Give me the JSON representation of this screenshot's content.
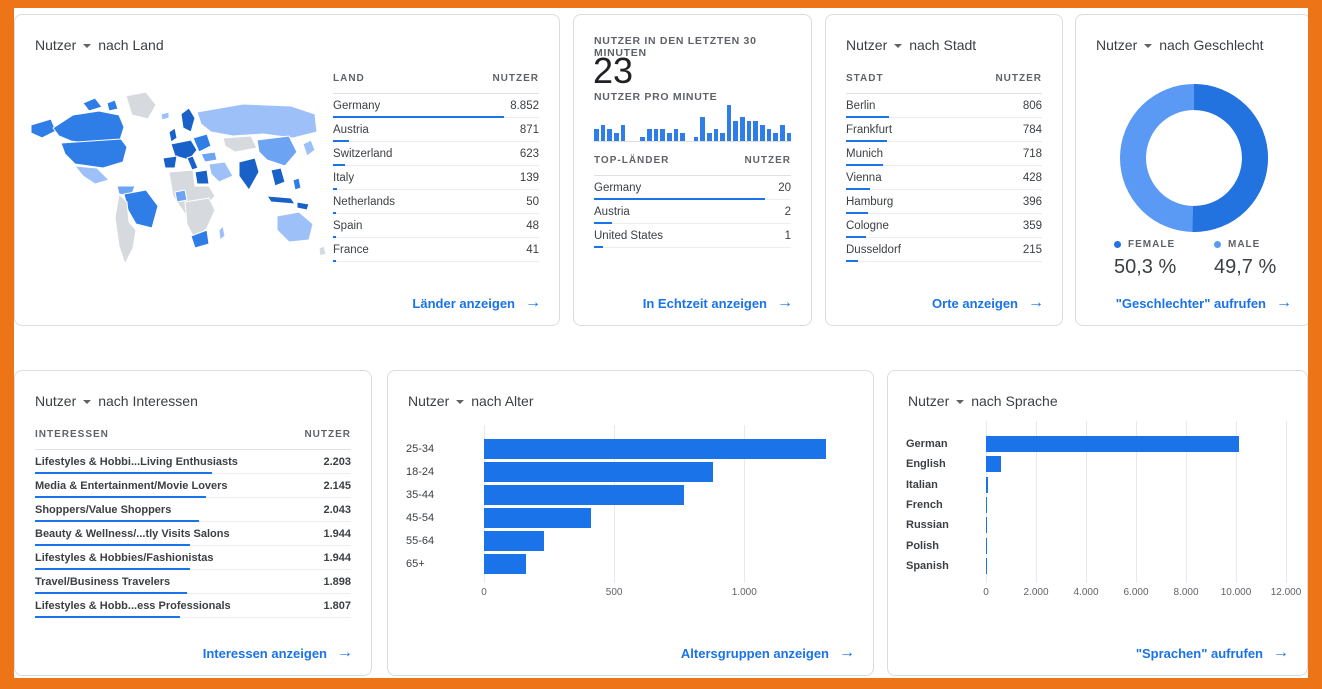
{
  "colors": {
    "frame": "#ee7418",
    "link_blue": "#1a73e8",
    "bar_blue": "#1a73e8",
    "mini_bar_blue": "#2e7de9",
    "donut_female": "#2272df",
    "donut_male": "#5a9af5",
    "map_dark": "#1861c9",
    "map_strong": "#2f7de7",
    "map_medium": "#6da3f3",
    "map_light": "#9dc0f8",
    "map_gray": "#d6d9dd"
  },
  "cards": {
    "land": {
      "title_metric": "Nutzer",
      "title_rest": "nach Land",
      "col_label": "LAND",
      "col_value": "NUTZER",
      "rows": [
        {
          "label": "Germany",
          "value": "8.852",
          "bar_pct": 83
        },
        {
          "label": "Austria",
          "value": "871",
          "bar_pct": 8
        },
        {
          "label": "Switzerland",
          "value": "623",
          "bar_pct": 6
        },
        {
          "label": "Italy",
          "value": "139",
          "bar_pct": 2
        },
        {
          "label": "Netherlands",
          "value": "50",
          "bar_pct": 1.5
        },
        {
          "label": "Spain",
          "value": "48",
          "bar_pct": 1.5
        },
        {
          "label": "France",
          "value": "41",
          "bar_pct": 1.5
        }
      ],
      "footer": "Länder anzeigen"
    },
    "realtime": {
      "header": "NUTZER IN DEN LETZTEN 30 MINUTEN",
      "value": "23",
      "sub": "NUTZER PRO MINUTE",
      "minute_bars": [
        3,
        4,
        3,
        2,
        4,
        0,
        0,
        1,
        3,
        3,
        3,
        2,
        3,
        2,
        0,
        1,
        6,
        2,
        3,
        2,
        9,
        5,
        6,
        5,
        5,
        4,
        3,
        2,
        4,
        2
      ],
      "minute_bars_max": 9,
      "col_label": "TOP-LÄNDER",
      "col_value": "NUTZER",
      "rows": [
        {
          "label": "Germany",
          "value": "20",
          "bar_pct": 87
        },
        {
          "label": "Austria",
          "value": "2",
          "bar_pct": 9
        },
        {
          "label": "United States",
          "value": "1",
          "bar_pct": 4.5
        }
      ],
      "footer": "In Echtzeit anzeigen"
    },
    "stadt": {
      "title_metric": "Nutzer",
      "title_rest": "nach Stadt",
      "col_label": "STADT",
      "col_value": "NUTZER",
      "rows": [
        {
          "label": "Berlin",
          "value": "806",
          "bar_pct": 22
        },
        {
          "label": "Frankfurt",
          "value": "784",
          "bar_pct": 21
        },
        {
          "label": "Munich",
          "value": "718",
          "bar_pct": 19
        },
        {
          "label": "Vienna",
          "value": "428",
          "bar_pct": 12
        },
        {
          "label": "Hamburg",
          "value": "396",
          "bar_pct": 11
        },
        {
          "label": "Cologne",
          "value": "359",
          "bar_pct": 10
        },
        {
          "label": "Dusseldorf",
          "value": "215",
          "bar_pct": 6
        }
      ],
      "footer": "Orte anzeigen"
    },
    "geschlecht": {
      "title_metric": "Nutzer",
      "title_rest": "nach Geschlecht",
      "female_label": "FEMALE",
      "female_value": "50,3 %",
      "female_pct": 50.3,
      "male_label": "MALE",
      "male_value": "49,7 %",
      "male_pct": 49.7,
      "footer": "\"Geschlechter\" aufrufen"
    },
    "interessen": {
      "title_metric": "Nutzer",
      "title_rest": "nach Interessen",
      "col_label": "INTERESSEN",
      "col_value": "NUTZER",
      "rows": [
        {
          "label": "Lifestyles & Hobbi...Living Enthusiasts",
          "value": "2.203",
          "bar_pct": 56
        },
        {
          "label": "Media & Entertainment/Movie Lovers",
          "value": "2.145",
          "bar_pct": 54
        },
        {
          "label": "Shoppers/Value Shoppers",
          "value": "2.043",
          "bar_pct": 52
        },
        {
          "label": "Beauty & Wellness/...tly Visits Salons",
          "value": "1.944",
          "bar_pct": 49
        },
        {
          "label": "Lifestyles & Hobbies/Fashionistas",
          "value": "1.944",
          "bar_pct": 49
        },
        {
          "label": "Travel/Business Travelers",
          "value": "1.898",
          "bar_pct": 48
        },
        {
          "label": "Lifestyles & Hobb...ess Professionals",
          "value": "1.807",
          "bar_pct": 46
        }
      ],
      "footer": "Interessen anzeigen"
    },
    "alter": {
      "title_metric": "Nutzer",
      "title_rest": "nach Alter",
      "categories": [
        "25-34",
        "18-24",
        "35-44",
        "45-54",
        "55-64",
        "65+"
      ],
      "values": [
        1315,
        880,
        770,
        410,
        230,
        160
      ],
      "xmax": 1360,
      "ticks": [
        {
          "label": "0",
          "value": 0
        },
        {
          "label": "500",
          "value": 500
        },
        {
          "label": "1.000",
          "value": 1000
        }
      ],
      "footer": "Altersgruppen anzeigen"
    },
    "sprache": {
      "title_metric": "Nutzer",
      "title_rest": "nach Sprache",
      "categories": [
        "German",
        "English",
        "Italian",
        "French",
        "Russian",
        "Polish",
        "Spanish"
      ],
      "values": [
        10100,
        600,
        80,
        30,
        20,
        15,
        10
      ],
      "xmax": 12400,
      "ticks": [
        {
          "label": "0",
          "value": 0
        },
        {
          "label": "2.000",
          "value": 2000
        },
        {
          "label": "4.000",
          "value": 4000
        },
        {
          "label": "6.000",
          "value": 6000
        },
        {
          "label": "8.000",
          "value": 8000
        },
        {
          "label": "10.000",
          "value": 10000
        },
        {
          "label": "12.000",
          "value": 12000
        }
      ],
      "footer": "\"Sprachen\" aufrufen"
    }
  },
  "chart_data": [
    {
      "type": "table",
      "title": "Nutzer nach Land",
      "columns": [
        "LAND",
        "NUTZER"
      ],
      "categories": [
        "Germany",
        "Austria",
        "Switzerland",
        "Italy",
        "Netherlands",
        "Spain",
        "France"
      ],
      "values": [
        8852,
        871,
        623,
        139,
        50,
        48,
        41
      ]
    },
    {
      "type": "bar",
      "title": "Nutzer pro Minute (letzte 30 Minuten)",
      "total_last_30_min": 23,
      "values": [
        3,
        4,
        3,
        2,
        4,
        0,
        0,
        1,
        3,
        3,
        3,
        2,
        3,
        2,
        0,
        1,
        6,
        2,
        3,
        2,
        9,
        5,
        6,
        5,
        5,
        4,
        3,
        2,
        4,
        2
      ]
    },
    {
      "type": "table",
      "title": "Top-Länder (Echtzeit)",
      "columns": [
        "TOP-LÄNDER",
        "NUTZER"
      ],
      "categories": [
        "Germany",
        "Austria",
        "United States"
      ],
      "values": [
        20,
        2,
        1
      ]
    },
    {
      "type": "table",
      "title": "Nutzer nach Stadt",
      "columns": [
        "STADT",
        "NUTZER"
      ],
      "categories": [
        "Berlin",
        "Frankfurt",
        "Munich",
        "Vienna",
        "Hamburg",
        "Cologne",
        "Dusseldorf"
      ],
      "values": [
        806,
        784,
        718,
        428,
        396,
        359,
        215
      ]
    },
    {
      "type": "pie",
      "title": "Nutzer nach Geschlecht",
      "categories": [
        "FEMALE",
        "MALE"
      ],
      "values": [
        50.3,
        49.7
      ],
      "legend_position": "bottom"
    },
    {
      "type": "table",
      "title": "Nutzer nach Interessen",
      "columns": [
        "INTERESSEN",
        "NUTZER"
      ],
      "categories": [
        "Lifestyles & Hobbi...Living Enthusiasts",
        "Media & Entertainment/Movie Lovers",
        "Shoppers/Value Shoppers",
        "Beauty & Wellness/...tly Visits Salons",
        "Lifestyles & Hobbies/Fashionistas",
        "Travel/Business Travelers",
        "Lifestyles & Hobb...ess Professionals"
      ],
      "values": [
        2203,
        2145,
        2043,
        1944,
        1944,
        1898,
        1807
      ]
    },
    {
      "type": "bar",
      "title": "Nutzer nach Alter",
      "orientation": "horizontal",
      "categories": [
        "25-34",
        "18-24",
        "35-44",
        "45-54",
        "55-64",
        "65+"
      ],
      "values": [
        1315,
        880,
        770,
        410,
        230,
        160
      ],
      "xlim": [
        0,
        1360
      ],
      "grid": true
    },
    {
      "type": "bar",
      "title": "Nutzer nach Sprache",
      "orientation": "horizontal",
      "categories": [
        "German",
        "English",
        "Italian",
        "French",
        "Russian",
        "Polish",
        "Spanish"
      ],
      "values": [
        10100,
        600,
        80,
        30,
        20,
        15,
        10
      ],
      "xlim": [
        0,
        12400
      ],
      "grid": true
    }
  ]
}
